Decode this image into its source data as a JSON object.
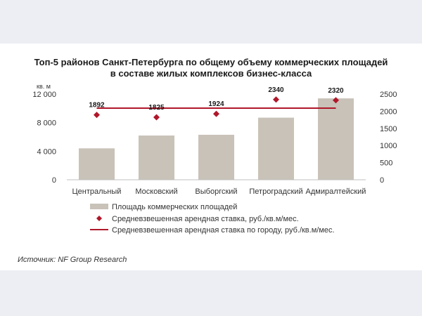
{
  "chart_data": {
    "type": "bar",
    "title_lines": [
      "Топ-5 районов Санкт-Петербурга по общему объему коммерческих площадей",
      "в составе жилых комплексов бизнес-класса"
    ],
    "y_unit_label": "кв. м",
    "categories": [
      "Центральный",
      "Московский",
      "Выборгский",
      "Петроградский",
      "Адмиралтейский"
    ],
    "series": [
      {
        "name": "Площадь коммерческих площадей",
        "type": "bar",
        "axis": "left",
        "color": "#c9c2b8",
        "values": [
          4400,
          6200,
          6300,
          8700,
          11400
        ]
      },
      {
        "name": "Средневзвешенная арендная ставка, руб./кв.м/мес.",
        "type": "scatter",
        "axis": "right",
        "color": "#b0172a",
        "values": [
          1892,
          1825,
          1924,
          2340,
          2320
        ],
        "labels": [
          "1892",
          "1825",
          "1924",
          "2340",
          "2320"
        ]
      },
      {
        "name": "Средневзвешенная арендная ставка по городу, руб./кв.м/мес.",
        "type": "line",
        "axis": "right",
        "color": "#b0172a",
        "value": 2090
      }
    ],
    "y_left": {
      "min": 0,
      "max": 12000,
      "ticks": [
        0,
        4000,
        8000,
        12000
      ],
      "tick_labels": [
        "0",
        "4 000",
        "8 000",
        "12 000"
      ]
    },
    "y_right": {
      "min": 0,
      "max": 2500,
      "ticks": [
        0,
        500,
        1000,
        1500,
        2000,
        2500
      ],
      "tick_labels": [
        "0",
        "500",
        "1000",
        "1500",
        "2000",
        "2500"
      ]
    },
    "grid": false,
    "legend_position": "bottom"
  },
  "source": "Источник: NF Group Research"
}
